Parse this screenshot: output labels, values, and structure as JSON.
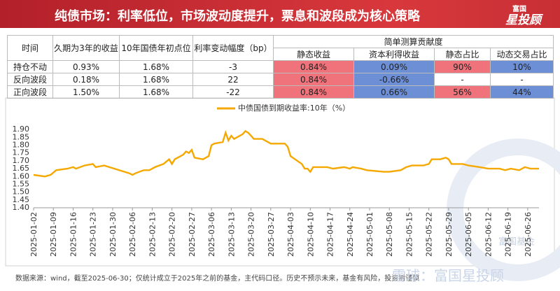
{
  "header": {
    "title": "纯债市场：利率低位，市场波动度提升，票息和波段成为核心策略",
    "logo_small": "富国",
    "logo_big": "星投顾"
  },
  "table": {
    "headers": [
      "时间",
      "久期为3年的收益",
      "10年国债年初点位",
      "利率变动幅度（bp）",
      "简单测算贡献度"
    ],
    "subheaders": [
      "静态收益",
      "资本利得收益",
      "静态占比",
      "动态交易占比"
    ],
    "rows": [
      [
        "持仓不动",
        "0.93%",
        "1.68%",
        "-3",
        "0.84%",
        "0.09%",
        "90%",
        "10%"
      ],
      [
        "反向波段",
        "0.18%",
        "1.68%",
        "22",
        "0.84%",
        "-0.66%",
        "-",
        "-"
      ],
      [
        "正向波段",
        "1.50%",
        "1.68%",
        "-22",
        "0.84%",
        "0.66%",
        "56%",
        "44%"
      ]
    ]
  },
  "chart_data": {
    "type": "line",
    "x": [
      "2025-01-02",
      "2025-01-06",
      "2025-01-08",
      "2025-01-10",
      "2025-01-14",
      "2025-01-16",
      "2025-01-17",
      "2025-01-20",
      "2025-01-23",
      "2025-01-24",
      "2025-01-27",
      "2025-02-05",
      "2025-02-06",
      "2025-02-07",
      "2025-02-10",
      "2025-02-12",
      "2025-02-14",
      "2025-02-17",
      "2025-02-19",
      "2025-02-20",
      "2025-02-21",
      "2025-02-24",
      "2025-02-25",
      "2025-02-26",
      "2025-02-27",
      "2025-02-28",
      "2025-03-03",
      "2025-03-05",
      "2025-03-06",
      "2025-03-07",
      "2025-03-10",
      "2025-03-11",
      "2025-03-12",
      "2025-03-13",
      "2025-03-14",
      "2025-03-17",
      "2025-03-18",
      "2025-03-19",
      "2025-03-20",
      "2025-03-21",
      "2025-03-24",
      "2025-03-26",
      "2025-03-27",
      "2025-03-31",
      "2025-04-01",
      "2025-04-02",
      "2025-04-03",
      "2025-04-07",
      "2025-04-08",
      "2025-04-09",
      "2025-04-10",
      "2025-04-11",
      "2025-04-14",
      "2025-04-16",
      "2025-04-18",
      "2025-04-22",
      "2025-04-24",
      "2025-04-25",
      "2025-04-28",
      "2025-04-30",
      "2025-05-06",
      "2025-05-08",
      "2025-05-12",
      "2025-05-14",
      "2025-05-16",
      "2025-05-20",
      "2025-05-22",
      "2025-05-23",
      "2025-05-26",
      "2025-05-28",
      "2025-05-29",
      "2025-05-30",
      "2025-06-03",
      "2025-06-05",
      "2025-06-09",
      "2025-06-12",
      "2025-06-16",
      "2025-06-18",
      "2025-06-20",
      "2025-06-23",
      "2025-06-25",
      "2025-06-27",
      "2025-06-30"
    ],
    "series": [
      {
        "name": "中债国债到期收益率:10年（%）",
        "color": "#f5a800",
        "values": [
          1.61,
          1.6,
          1.61,
          1.64,
          1.65,
          1.66,
          1.65,
          1.67,
          1.68,
          1.66,
          1.67,
          1.62,
          1.61,
          1.62,
          1.64,
          1.64,
          1.66,
          1.68,
          1.71,
          1.68,
          1.71,
          1.74,
          1.76,
          1.75,
          1.77,
          1.72,
          1.71,
          1.73,
          1.8,
          1.81,
          1.82,
          1.88,
          1.83,
          1.86,
          1.84,
          1.87,
          1.89,
          1.88,
          1.86,
          1.84,
          1.84,
          1.82,
          1.81,
          1.81,
          1.81,
          1.79,
          1.73,
          1.68,
          1.65,
          1.65,
          1.63,
          1.66,
          1.66,
          1.66,
          1.65,
          1.66,
          1.65,
          1.66,
          1.65,
          1.64,
          1.63,
          1.63,
          1.64,
          1.66,
          1.67,
          1.67,
          1.68,
          1.71,
          1.71,
          1.72,
          1.71,
          1.68,
          1.68,
          1.67,
          1.66,
          1.65,
          1.65,
          1.64,
          1.65,
          1.64,
          1.66,
          1.65,
          1.65
        ]
      }
    ],
    "xlim": [
      "2025-01-02",
      "2025-06-30"
    ],
    "xticks": [
      "2025-01-02",
      "2025-01-09",
      "2025-01-16",
      "2025-01-23",
      "2025-01-30",
      "2025-02-06",
      "2025-02-13",
      "2025-02-20",
      "2025-02-27",
      "2025-03-06",
      "2025-03-13",
      "2025-03-20",
      "2025-03-27",
      "2025-04-03",
      "2025-04-10",
      "2025-04-17",
      "2025-04-24",
      "2025-05-01",
      "2025-05-08",
      "2025-05-15",
      "2025-05-22",
      "2025-05-29",
      "2025-06-05",
      "2025-06-12",
      "2025-06-19",
      "2025-06-26"
    ],
    "ylim": [
      1.4,
      1.95
    ],
    "yticks": [
      {
        "value": 1.4,
        "label": "1.40"
      },
      {
        "value": 1.45,
        "label": "1.45"
      },
      {
        "value": 1.5,
        "label": "1.50"
      },
      {
        "value": 1.55,
        "label": "1.55"
      },
      {
        "value": 1.6,
        "label": "1.60"
      },
      {
        "value": 1.65,
        "label": "1.65"
      },
      {
        "value": 1.7,
        "label": "1.70"
      },
      {
        "value": 1.75,
        "label": "1.75"
      },
      {
        "value": 1.8,
        "label": "1.80"
      },
      {
        "value": 1.85,
        "label": "1.85"
      },
      {
        "value": 1.9,
        "label": "1.90"
      }
    ],
    "grid": false
  },
  "watermarks": [
    "富国基金",
    "雪球：富国星投顾"
  ],
  "footer": "数据来源：wind，截至2025-06-30；仅统计成立于2025年之前的基金，主代码口径。历史不预示未来，基金有风险，投资需谨慎"
}
